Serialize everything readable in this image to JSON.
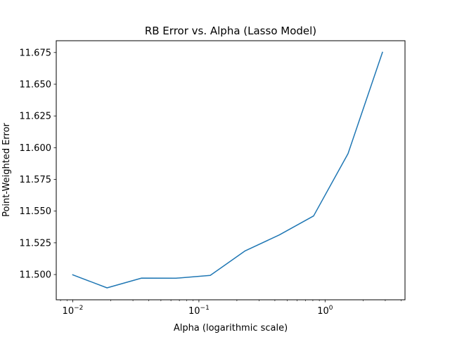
{
  "chart_data": {
    "type": "line",
    "title": "RB Error vs. Alpha (Lasso Model)",
    "xlabel": "Alpha (logarithmic scale)",
    "ylabel": "Point-Weighted Error",
    "xscale": "log",
    "xlim": [
      0.0074,
      4.3
    ],
    "ylim": [
      11.4801,
      11.6843
    ],
    "x_ticks": [
      {
        "value": 0.01,
        "label": "10",
        "exp": "−2"
      },
      {
        "value": 0.1,
        "label": "10",
        "exp": "−1"
      },
      {
        "value": 1,
        "label": "10",
        "exp": "0"
      }
    ],
    "y_ticks": [
      {
        "value": 11.5,
        "label": "11.500"
      },
      {
        "value": 11.525,
        "label": "11.525"
      },
      {
        "value": 11.55,
        "label": "11.550"
      },
      {
        "value": 11.575,
        "label": "11.575"
      },
      {
        "value": 11.6,
        "label": "11.600"
      },
      {
        "value": 11.625,
        "label": "11.625"
      },
      {
        "value": 11.65,
        "label": "11.650"
      },
      {
        "value": 11.675,
        "label": "11.675"
      }
    ],
    "series": [
      {
        "color": "#1f77b4",
        "x": [
          0.01,
          0.0187,
          0.0351,
          0.0658,
          0.123,
          0.231,
          0.433,
          0.811,
          1.52,
          2.85
        ],
        "y": [
          11.4998,
          11.4895,
          11.4972,
          11.4971,
          11.4993,
          11.5185,
          11.5312,
          11.5462,
          11.5953,
          11.6752
        ]
      }
    ],
    "grid": false,
    "legend": "none"
  }
}
